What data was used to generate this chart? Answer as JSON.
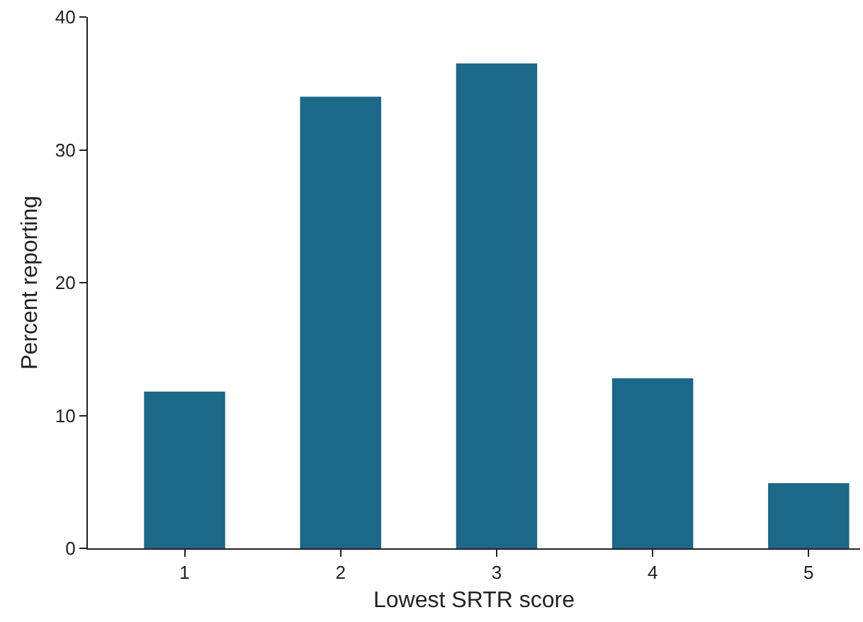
{
  "chart_data": {
    "type": "bar",
    "xlabel": "Lowest SRTR score",
    "ylabel": "Percent reporting",
    "categories": [
      "1",
      "2",
      "3",
      "4",
      "5"
    ],
    "values": [
      11.8,
      34.0,
      36.5,
      12.8,
      4.9
    ],
    "color": "#1b6889",
    "ylim": [
      0,
      40
    ],
    "yticks": [
      0,
      10,
      20,
      30,
      40
    ],
    "grid": false,
    "legend": false
  }
}
